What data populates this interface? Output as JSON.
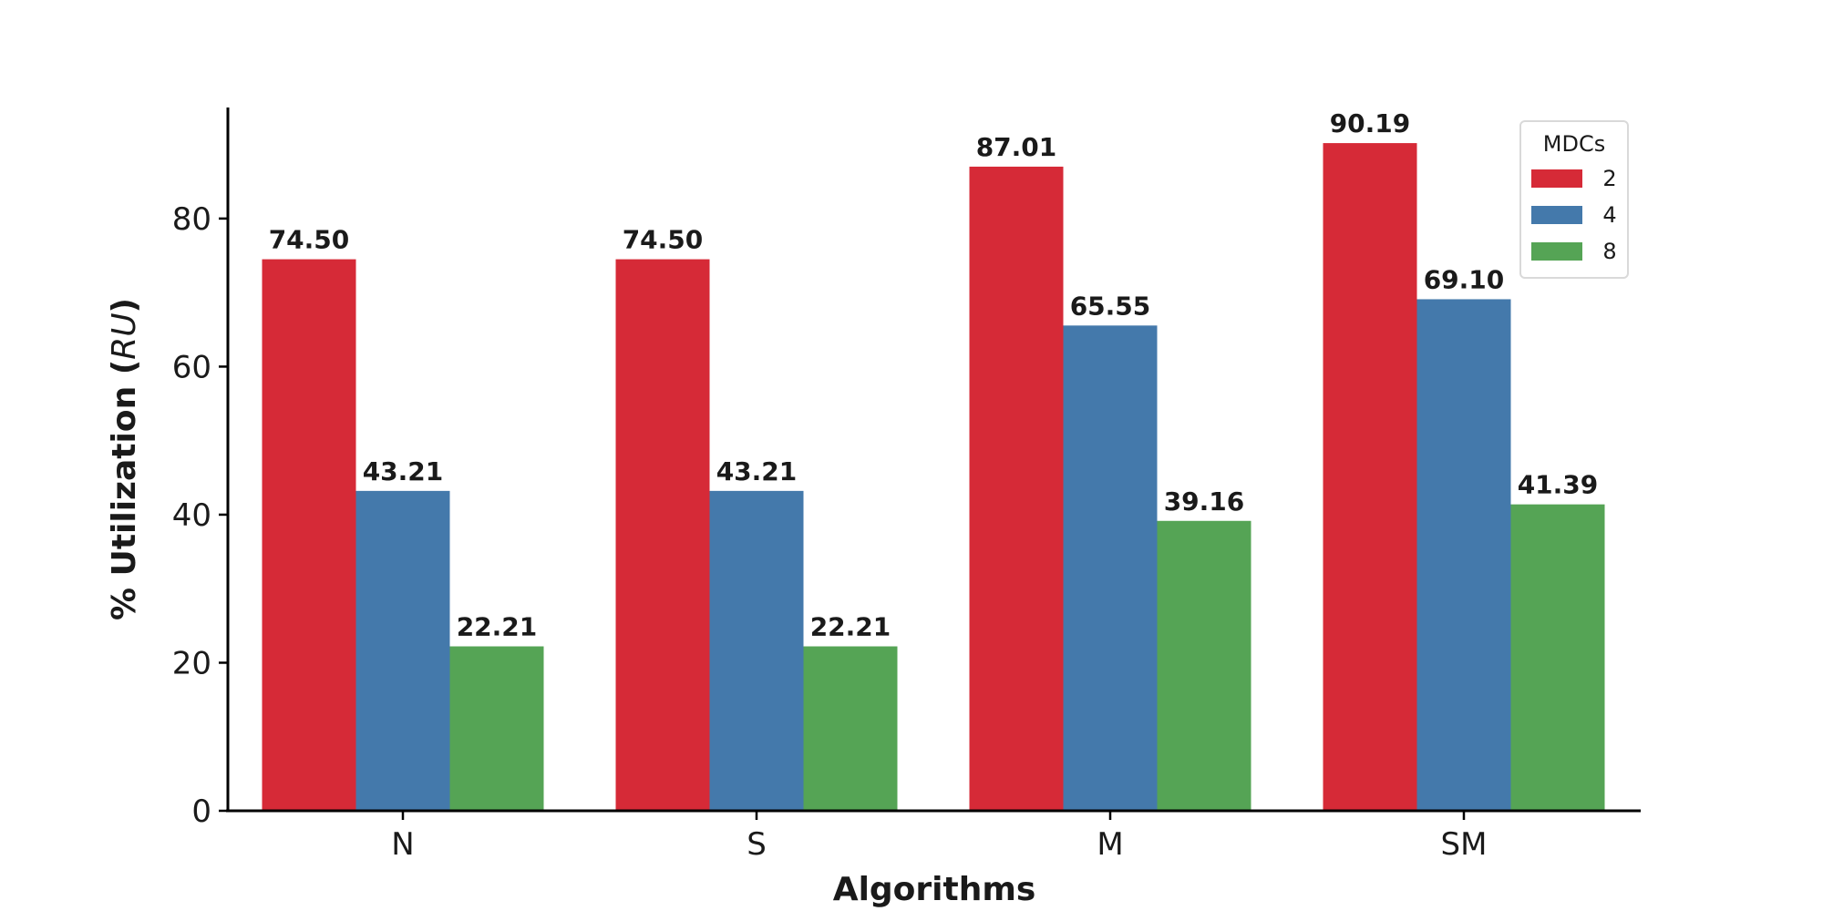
{
  "chart_data": {
    "type": "bar",
    "categories": [
      "N",
      "S",
      "M",
      "SM"
    ],
    "series": [
      {
        "name": "2",
        "values": [
          74.5,
          74.5,
          87.01,
          90.19
        ],
        "color": "#d62a37",
        "labels": [
          "74.50",
          "74.50",
          "87.01",
          "90.19"
        ]
      },
      {
        "name": "4",
        "values": [
          43.21,
          43.21,
          65.55,
          69.1
        ],
        "color": "#4479ab",
        "labels": [
          "43.21",
          "43.21",
          "65.55",
          "69.10"
        ]
      },
      {
        "name": "8",
        "values": [
          22.21,
          22.21,
          39.16,
          41.39
        ],
        "color": "#55a455",
        "labels": [
          "22.21",
          "22.21",
          "39.16",
          "41.39"
        ]
      }
    ],
    "xlabel": "Algorithms",
    "ylabel_prefix": "% Utilization (",
    "ylabel_italic": "RU",
    "ylabel_suffix": ")",
    "ylim": [
      0,
      95
    ],
    "yticks": [
      0,
      20,
      40,
      60,
      80
    ],
    "grid": false,
    "legend": {
      "title": "MDCs",
      "placement": "top-right"
    }
  }
}
